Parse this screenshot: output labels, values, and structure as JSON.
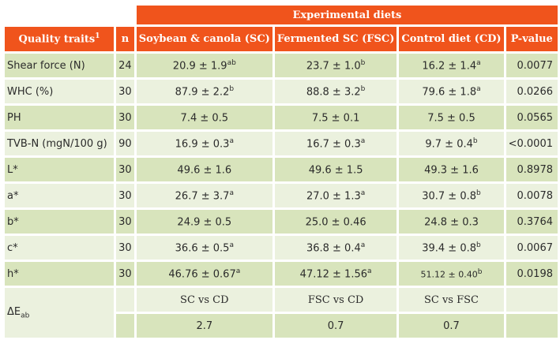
{
  "header": {
    "group": "Experimental diets",
    "columns": [
      {
        "label": "Quality traits",
        "sup": "1"
      },
      {
        "label": "n"
      },
      {
        "label": "Soybean & canola (SC)"
      },
      {
        "label": "Fermented SC (FSC)"
      },
      {
        "label": "Control diet (CD)"
      },
      {
        "label": "P-value"
      }
    ]
  },
  "rows": [
    {
      "trait": "Shear force (N)",
      "n": "24",
      "sc": {
        "v": "20.9 ± 1.9",
        "s": "ab"
      },
      "fsc": {
        "v": "23.7 ± 1.0",
        "s": "b"
      },
      "cd": {
        "v": "16.2 ± 1.4",
        "s": "a"
      },
      "p": "0.0077"
    },
    {
      "trait": "WHC (%)",
      "n": "30",
      "sc": {
        "v": "87.9 ± 2.2",
        "s": "b"
      },
      "fsc": {
        "v": "88.8 ± 3.2",
        "s": "b"
      },
      "cd": {
        "v": "79.6 ± 1.8",
        "s": "a"
      },
      "p": "0.0266"
    },
    {
      "trait": "PH",
      "n": "30",
      "sc": {
        "v": "7.4 ± 0.5",
        "s": ""
      },
      "fsc": {
        "v": "7.5 ± 0.1",
        "s": ""
      },
      "cd": {
        "v": "7.5 ± 0.5",
        "s": ""
      },
      "p": "0.0565"
    },
    {
      "trait": "TVB-N (mgN/100 g)",
      "n": "90",
      "sc": {
        "v": "16.9 ± 0.3",
        "s": "a"
      },
      "fsc": {
        "v": "16.7 ± 0.3",
        "s": "a"
      },
      "cd": {
        "v": "9.7 ± 0.4",
        "s": "b"
      },
      "p": "<0.0001"
    },
    {
      "trait": "L*",
      "n": "30",
      "sc": {
        "v": "49.6 ± 1.6",
        "s": ""
      },
      "fsc": {
        "v": "49.6 ± 1.5",
        "s": ""
      },
      "cd": {
        "v": "49.3 ± 1.6",
        "s": ""
      },
      "p": "0.8978"
    },
    {
      "trait": "a*",
      "n": "30",
      "sc": {
        "v": "26.7 ± 3.7",
        "s": "a"
      },
      "fsc": {
        "v": "27.0 ± 1.3",
        "s": "a"
      },
      "cd": {
        "v": "30.7 ± 0.8",
        "s": "b"
      },
      "p": "0.0078"
    },
    {
      "trait": "b*",
      "n": "30",
      "sc": {
        "v": "24.9 ± 0.5",
        "s": ""
      },
      "fsc": {
        "v": "25.0 ± 0.46",
        "s": ""
      },
      "cd": {
        "v": "24.8 ± 0.3",
        "s": ""
      },
      "p": "0.3764"
    },
    {
      "trait": "c*",
      "n": "30",
      "sc": {
        "v": "36.6 ± 0.5",
        "s": "a"
      },
      "fsc": {
        "v": "36.8 ± 0.4",
        "s": "a"
      },
      "cd": {
        "v": "39.4 ± 0.8",
        "s": "b"
      },
      "p": "0.0067"
    },
    {
      "trait": "h*",
      "n": "30",
      "sc": {
        "v": "46.76 ± 0.67",
        "s": "a"
      },
      "fsc": {
        "v": "47.12 ± 1.56",
        "s": "a"
      },
      "cd": {
        "v": "51.12 ± 0.40",
        "s": "b",
        "small": true
      },
      "p": "0.0198"
    }
  ],
  "delta": {
    "label": "ΔE",
    "sub": "ab",
    "comparisons": [
      "SC vs CD",
      "FSC vs CD",
      "SC vs FSC"
    ],
    "values": [
      "2.7",
      "0.7",
      "0.7"
    ]
  },
  "colors": {
    "header": "#f0541c",
    "row_dark": "#d8e4bc",
    "row_light": "#ebf1de"
  }
}
